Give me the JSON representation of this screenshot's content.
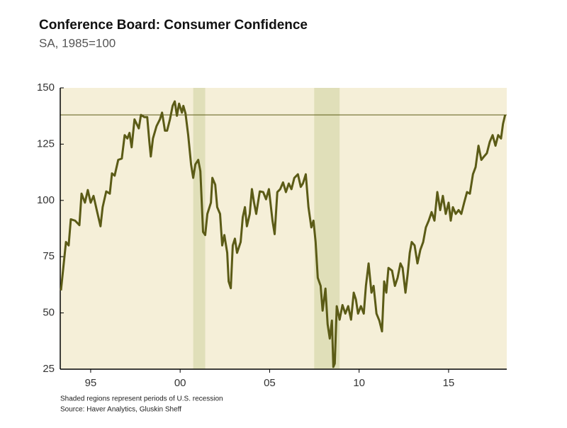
{
  "chart_data": {
    "type": "line",
    "title": "Conference Board: Consumer Confidence",
    "subtitle": "SA, 1985=100",
    "notes": [
      "Shaded regions represent periods of U.S. recession",
      "Source: Haver Analytics, Gluskin Sheff"
    ],
    "xlim": [
      1993.3,
      2018.25
    ],
    "xticks": [
      {
        "value": 1995,
        "label": "95"
      },
      {
        "value": 2000,
        "label": "00"
      },
      {
        "value": 2005,
        "label": "05"
      },
      {
        "value": 2010,
        "label": "10"
      },
      {
        "value": 2015,
        "label": "15"
      }
    ],
    "ylim": [
      25,
      150
    ],
    "yticks": [
      25,
      50,
      75,
      100,
      125,
      150
    ],
    "shaded_regions": [
      [
        2000.73,
        2001.4
      ],
      [
        2007.49,
        2008.91
      ]
    ],
    "hline": 138,
    "background": "#f5efd8",
    "shade_color": "#e0dfb9",
    "x": [
      1993.34,
      1993.62,
      1993.77,
      1993.89,
      1994.13,
      1994.37,
      1994.49,
      1994.68,
      1994.84,
      1995.0,
      1995.16,
      1995.36,
      1995.55,
      1995.67,
      1995.87,
      1996.07,
      1996.19,
      1996.34,
      1996.54,
      1996.74,
      1996.9,
      1997.05,
      1997.17,
      1997.29,
      1997.45,
      1997.69,
      1997.81,
      1998.0,
      1998.16,
      1998.28,
      1998.36,
      1998.48,
      1998.68,
      1998.87,
      1998.99,
      1999.15,
      1999.27,
      1999.43,
      1999.58,
      1999.7,
      1999.82,
      1999.94,
      2000.1,
      2000.18,
      2000.3,
      2000.45,
      2000.61,
      2000.73,
      2000.85,
      2001.01,
      2001.13,
      2001.28,
      2001.4,
      2001.52,
      2001.72,
      2001.8,
      2001.96,
      2002.07,
      2002.23,
      2002.35,
      2002.47,
      2002.63,
      2002.71,
      2002.83,
      2002.94,
      2003.06,
      2003.18,
      2003.38,
      2003.5,
      2003.62,
      2003.73,
      2003.89,
      2004.01,
      2004.13,
      2004.25,
      2004.45,
      2004.64,
      2004.8,
      2004.96,
      2005.16,
      2005.28,
      2005.43,
      2005.59,
      2005.75,
      2005.91,
      2006.07,
      2006.22,
      2006.38,
      2006.58,
      2006.74,
      2006.86,
      2007.02,
      2007.17,
      2007.33,
      2007.45,
      2007.57,
      2007.69,
      2007.85,
      2007.96,
      2008.12,
      2008.24,
      2008.36,
      2008.48,
      2008.56,
      2008.64,
      2008.75,
      2008.91,
      2009.07,
      2009.23,
      2009.39,
      2009.55,
      2009.7,
      2009.82,
      2009.94,
      2010.1,
      2010.26,
      2010.38,
      2010.53,
      2010.69,
      2010.81,
      2010.97,
      2011.13,
      2011.28,
      2011.4,
      2011.52,
      2011.64,
      2011.84,
      2012.0,
      2012.15,
      2012.31,
      2012.43,
      2012.59,
      2012.71,
      2012.83,
      2012.94,
      2013.1,
      2013.26,
      2013.42,
      2013.58,
      2013.73,
      2013.89,
      2014.05,
      2014.21,
      2014.37,
      2014.53,
      2014.68,
      2014.84,
      2015.0,
      2015.12,
      2015.24,
      2015.4,
      2015.56,
      2015.71,
      2015.87,
      2016.03,
      2016.19,
      2016.36,
      2016.51,
      2016.67,
      2016.83,
      2016.98,
      2017.14,
      2017.3,
      2017.46,
      2017.62,
      2017.77,
      2017.93,
      2018.04,
      2018.16
    ],
    "series": [
      {
        "color": "#5b5b16",
        "values": [
          60,
          81.5,
          80,
          91.6,
          91,
          89,
          103,
          99,
          104.6,
          99,
          102,
          95,
          88.5,
          97,
          104,
          103,
          112,
          111,
          118,
          118.6,
          129,
          127.5,
          130,
          123.6,
          136,
          132,
          138,
          137,
          137,
          126,
          119.5,
          127.5,
          133,
          136,
          139,
          131,
          131,
          136,
          142,
          144,
          137.6,
          143,
          139,
          142,
          138.6,
          129,
          116,
          110,
          116,
          118,
          113,
          86,
          84.6,
          94,
          99,
          110,
          107,
          97,
          94,
          80,
          84.6,
          76.7,
          64,
          61,
          80,
          83,
          76.7,
          81.5,
          92.6,
          97,
          88.5,
          94,
          105,
          99,
          94,
          104,
          103.7,
          100.5,
          105,
          91,
          85,
          103.7,
          105,
          108,
          103.7,
          107.5,
          105,
          110,
          111.6,
          106,
          107.5,
          111.6,
          97,
          88,
          91,
          81.5,
          65.6,
          62,
          51,
          60.8,
          45,
          38.6,
          46.6,
          26,
          27.5,
          53,
          47,
          53.5,
          49.7,
          53,
          47,
          59,
          56,
          49.7,
          53,
          49.7,
          62,
          72,
          59,
          62,
          49.7,
          46.6,
          41.8,
          64,
          59,
          70,
          68.8,
          62,
          65.6,
          72,
          70,
          59,
          67,
          76.7,
          81.5,
          80,
          72,
          78,
          81.5,
          88,
          91,
          94.8,
          91,
          103.7,
          95.7,
          102,
          94,
          99,
          91,
          97,
          94,
          95.7,
          94,
          99,
          103.7,
          103,
          111.6,
          114.8,
          124.3,
          118,
          119.5,
          121,
          126,
          129,
          124.3,
          129,
          127.5,
          134,
          138
        ]
      }
    ]
  }
}
